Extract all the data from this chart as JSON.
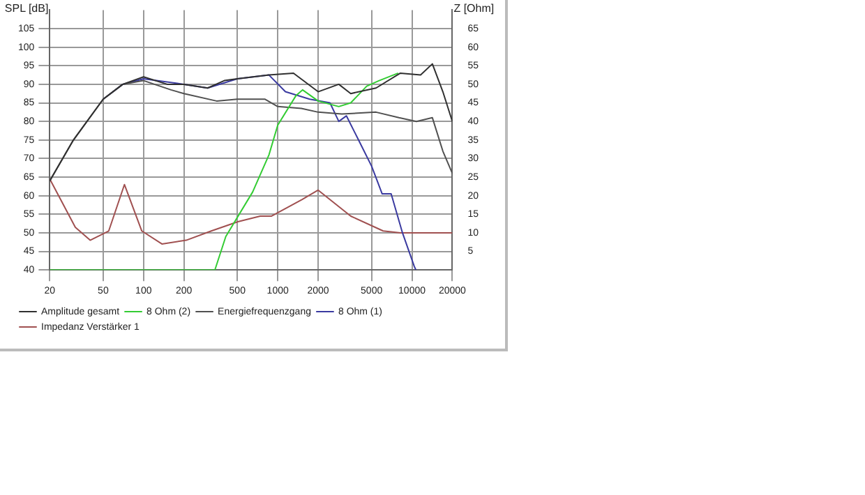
{
  "chart_data": {
    "type": "line",
    "xlabel": null,
    "ylabel": "SPL [dB]",
    "y2label": "Z [Ohm]",
    "log": "x",
    "xlim": [
      20,
      20000
    ],
    "xticks": [
      20,
      50,
      100,
      200,
      500,
      1000,
      2000,
      5000,
      10000,
      20000
    ],
    "ylim": [
      40,
      110
    ],
    "yticks": [
      40,
      45,
      50,
      55,
      60,
      65,
      70,
      75,
      80,
      85,
      90,
      95,
      100,
      105
    ],
    "y2lim": [
      0,
      70
    ],
    "y2ticks": [
      5,
      10,
      15,
      20,
      25,
      30,
      35,
      40,
      45,
      50,
      55,
      60,
      65
    ],
    "grid": true,
    "legend": "bottom",
    "marker": "none",
    "line_style": "solid",
    "series": [
      {
        "name": "Amplitude gesamt",
        "color": "#303030",
        "x": [
          20,
          30,
          50,
          70,
          100,
          150,
          200,
          300,
          400,
          500,
          860,
          1310,
          2000,
          2850,
          3500,
          5400,
          8200,
          11600,
          14200,
          17000,
          20000
        ],
        "values": [
          64,
          75,
          86,
          90,
          92,
          90,
          90,
          89,
          91,
          91.5,
          92.5,
          93,
          88,
          90,
          87.5,
          89,
          93,
          92.5,
          95.5,
          88,
          80
        ]
      },
      {
        "name": "8 Ohm (2)",
        "color": "#33cc33",
        "x": [
          20,
          340,
          410,
          650,
          860,
          1000,
          1370,
          1530,
          2000,
          2850,
          3500,
          4600,
          5700,
          7900
        ],
        "values": [
          40,
          40,
          49,
          61,
          71,
          79,
          87,
          88.5,
          85.5,
          84,
          85,
          89.5,
          91,
          93
        ]
      },
      {
        "name": "Energiefrequenzgang",
        "color": "#505050",
        "x": [
          20,
          30,
          50,
          70,
          100,
          160,
          200,
          350,
          500,
          800,
          1000,
          1500,
          2000,
          3000,
          5400,
          8000,
          10800,
          14200,
          17000,
          20000
        ],
        "values": [
          64,
          75,
          86,
          90,
          91,
          88.5,
          87.5,
          85.5,
          86,
          86,
          84,
          83.5,
          82.5,
          82,
          82.5,
          81,
          80,
          81,
          72,
          66
        ]
      },
      {
        "name": "8 Ohm (1)",
        "color": "#3a3aa0",
        "x": [
          50,
          70,
          100,
          200,
          300,
          500,
          860,
          1140,
          1730,
          2450,
          2850,
          3250,
          4000,
          5000,
          6000,
          7000,
          8500,
          10400,
          10700
        ],
        "values": [
          86,
          90,
          91.5,
          90,
          89,
          91.5,
          92.5,
          88,
          86,
          85,
          80,
          81.5,
          75,
          68,
          60.5,
          60.5,
          50,
          41,
          40
        ]
      },
      {
        "name": "Impedanz Verstärker 1",
        "color": "#a05050",
        "axis": "y2",
        "x": [
          20,
          31,
          40,
          55,
          72,
          97,
          137,
          208,
          320,
          505,
          740,
          900,
          1520,
          2000,
          3500,
          6100,
          8200,
          20000
        ],
        "values": [
          24.5,
          11.5,
          8,
          10.5,
          23,
          10.5,
          7,
          8,
          10.5,
          13,
          14.5,
          14.5,
          19,
          21.5,
          14.5,
          10.5,
          10,
          10
        ]
      }
    ]
  }
}
